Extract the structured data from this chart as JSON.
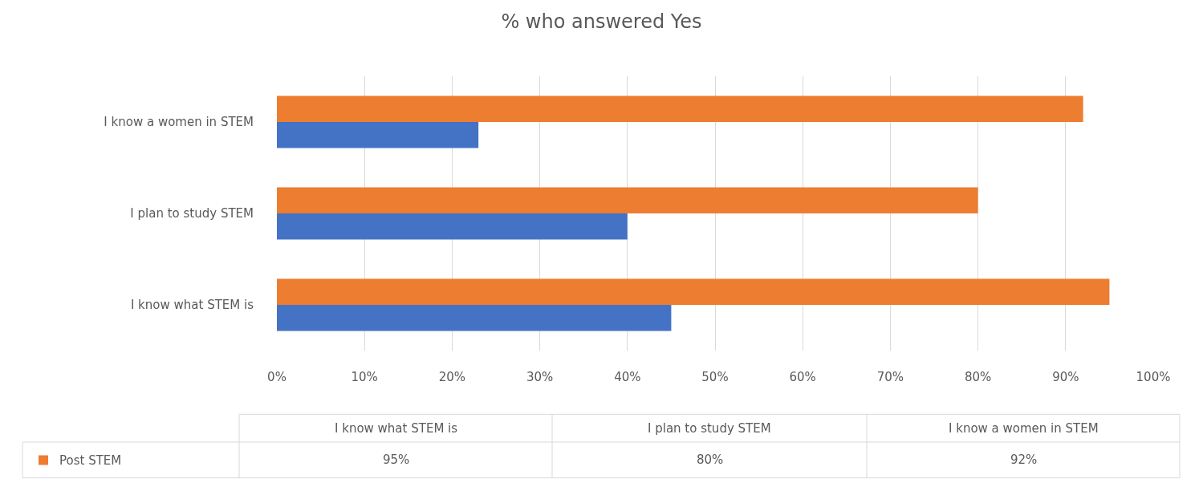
{
  "chart_data": {
    "type": "bar",
    "orientation": "horizontal",
    "title": "% who answered Yes",
    "categories": [
      "I know a women in STEM",
      "I plan to study STEM",
      "I know what STEM is"
    ],
    "series": [
      {
        "name": "Post STEM",
        "color": "#ed7d31",
        "values": [
          92,
          80,
          95
        ]
      },
      {
        "color": "#4472c4",
        "values": [
          23,
          40,
          45
        ]
      }
    ],
    "xlim": [
      0,
      100
    ],
    "xticks": [
      {
        "value": 0,
        "label": "0%"
      },
      {
        "value": 10,
        "label": "10%"
      },
      {
        "value": 20,
        "label": "20%"
      },
      {
        "value": 30,
        "label": "30%"
      },
      {
        "value": 40,
        "label": "40%"
      },
      {
        "value": 50,
        "label": "50%"
      },
      {
        "value": 60,
        "label": "60%"
      },
      {
        "value": 70,
        "label": "70%"
      },
      {
        "value": 80,
        "label": "80%"
      },
      {
        "value": 90,
        "label": "90%"
      },
      {
        "value": 100,
        "label": "100%"
      }
    ],
    "grid": "x",
    "legend": "bottom left",
    "annotations": [
      "95%",
      "80%",
      "92%"
    ]
  }
}
